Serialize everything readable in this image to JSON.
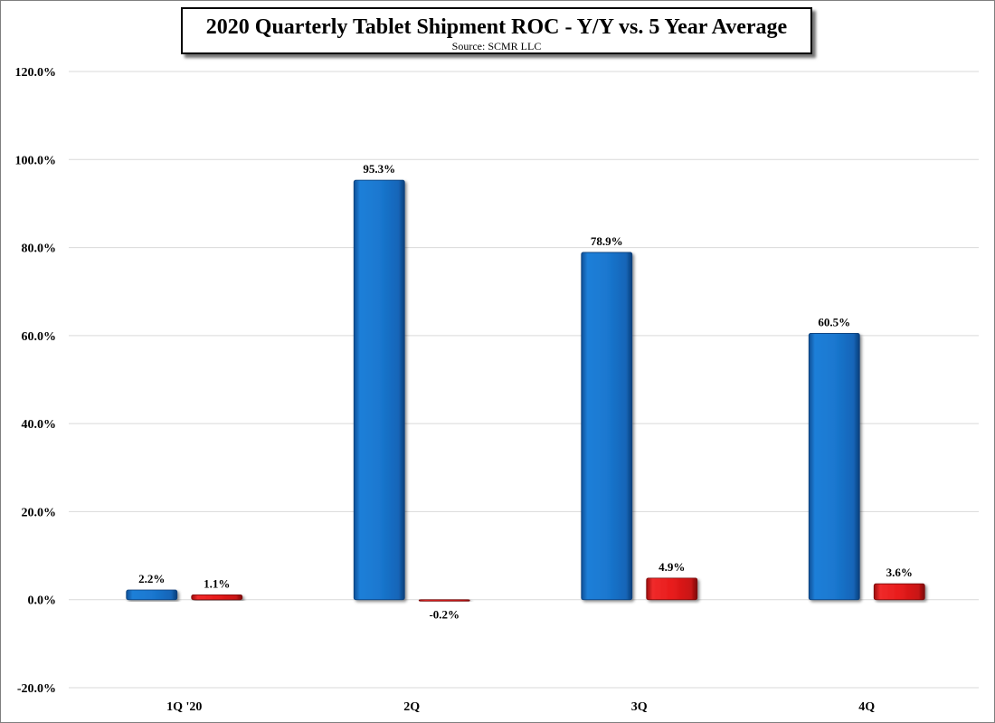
{
  "chart_data": {
    "type": "bar",
    "title": "2020 Quarterly Tablet Shipment ROC - Y/Y vs. 5 Year Average",
    "subtitle": "Source: SCMR LLC",
    "categories": [
      "1Q '20",
      "2Q",
      "3Q",
      "4Q"
    ],
    "series": [
      {
        "name": "2020 Y/Y",
        "color": "#1874cd",
        "values": [
          2.2,
          95.3,
          78.9,
          60.5
        ]
      },
      {
        "name": "5 Year Average",
        "color": "#e8191b",
        "values": [
          1.1,
          -0.2,
          4.9,
          3.6
        ]
      }
    ],
    "y_ticks": [
      "120.0%",
      "100.0%",
      "80.0%",
      "60.0%",
      "40.0%",
      "20.0%",
      "0.0%",
      "-20.0%"
    ],
    "ylim": [
      -20,
      120
    ],
    "ytick_step": 20,
    "grid": true,
    "legend": "none",
    "xlabel": "",
    "ylabel": ""
  }
}
